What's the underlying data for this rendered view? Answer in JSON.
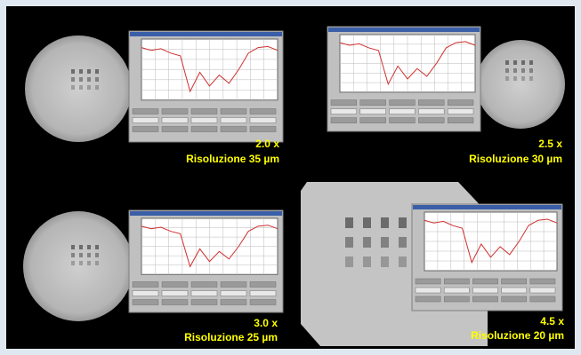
{
  "panels": [
    {
      "magnification": "2.0 x",
      "resolution": "Risoluzione 35 µm"
    },
    {
      "magnification": "2.5 x",
      "resolution": "Risoluzione 30 µm"
    },
    {
      "magnification": "3.0 x",
      "resolution": "Risoluzione 25 µm"
    },
    {
      "magnification": "4.5 x",
      "resolution": "Risoluzione 20 µm"
    }
  ]
}
